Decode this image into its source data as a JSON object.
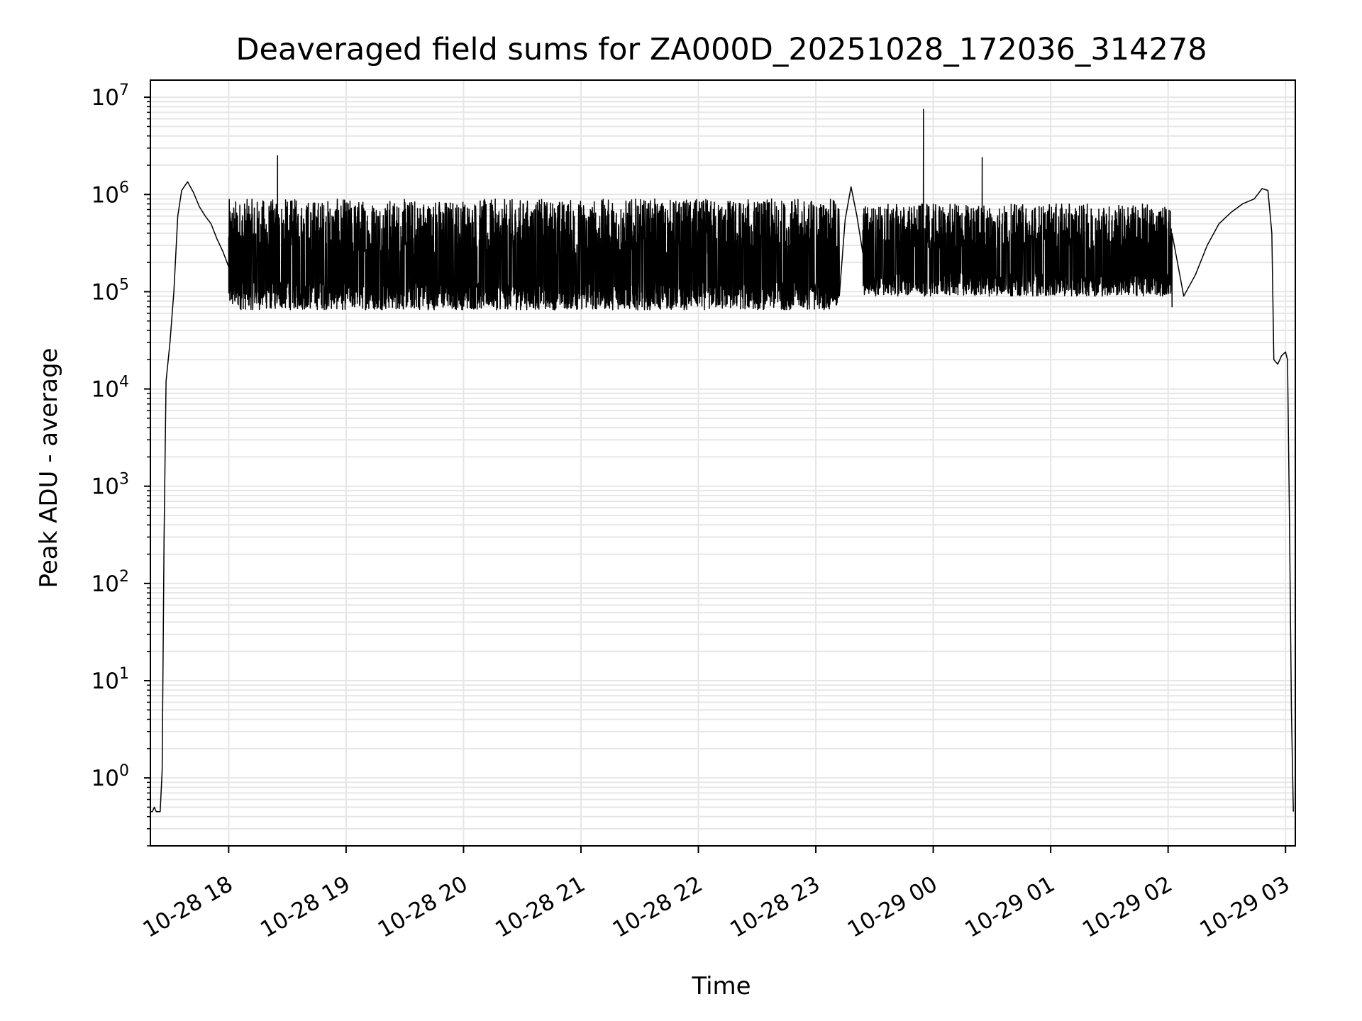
{
  "chart_data": {
    "type": "line",
    "title": "Deaveraged field sums for ZA000D_20251028_172036_314278",
    "xlabel": "Time",
    "ylabel": "Peak ADU - average",
    "yscale": "log",
    "ylim": [
      0.2,
      15000000
    ],
    "xlim": [
      "2025-10-28T17:20",
      "2025-10-29T03:05"
    ],
    "y_ticks": [
      {
        "base": "10",
        "exp": "0",
        "value": 1
      },
      {
        "base": "10",
        "exp": "1",
        "value": 10
      },
      {
        "base": "10",
        "exp": "2",
        "value": 100
      },
      {
        "base": "10",
        "exp": "3",
        "value": 1000
      },
      {
        "base": "10",
        "exp": "4",
        "value": 10000
      },
      {
        "base": "10",
        "exp": "5",
        "value": 100000
      },
      {
        "base": "10",
        "exp": "6",
        "value": 1000000
      },
      {
        "base": "10",
        "exp": "7",
        "value": 10000000
      }
    ],
    "x_ticks": [
      {
        "label": "10-28 18",
        "time": "2025-10-28T18:00"
      },
      {
        "label": "10-28 19",
        "time": "2025-10-28T19:00"
      },
      {
        "label": "10-28 20",
        "time": "2025-10-28T20:00"
      },
      {
        "label": "10-28 21",
        "time": "2025-10-28T21:00"
      },
      {
        "label": "10-28 22",
        "time": "2025-10-28T22:00"
      },
      {
        "label": "10-28 23",
        "time": "2025-10-28T23:00"
      },
      {
        "label": "10-29 00",
        "time": "2025-10-29T00:00"
      },
      {
        "label": "10-29 01",
        "time": "2025-10-29T01:00"
      },
      {
        "label": "10-29 02",
        "time": "2025-10-29T02:00"
      },
      {
        "label": "10-29 03",
        "time": "2025-10-29T03:00"
      }
    ],
    "grid": true,
    "line_color": "#000000",
    "grid_color": "#e6e6e6",
    "series": [
      {
        "points": [
          [
            "2025-10-28T17:20",
            0.45
          ],
          [
            "2025-10-28T17:21",
            0.45
          ],
          [
            "2025-10-28T17:22",
            0.5
          ],
          [
            "2025-10-28T17:23",
            0.45
          ],
          [
            "2025-10-28T17:24",
            0.45
          ],
          [
            "2025-10-28T17:25",
            0.45
          ],
          [
            "2025-10-28T17:26",
            1.2
          ],
          [
            "2025-10-28T17:27",
            300
          ],
          [
            "2025-10-28T17:28",
            12000
          ],
          [
            "2025-10-28T17:30",
            30000
          ],
          [
            "2025-10-28T17:32",
            100000
          ],
          [
            "2025-10-28T17:34",
            600000
          ],
          [
            "2025-10-28T17:36",
            1100000
          ],
          [
            "2025-10-28T17:39",
            1350000
          ],
          [
            "2025-10-28T17:42",
            1050000
          ],
          [
            "2025-10-28T17:45",
            750000
          ],
          [
            "2025-10-28T17:48",
            600000
          ],
          [
            "2025-10-28T17:51",
            500000
          ],
          [
            "2025-10-28T17:54",
            350000
          ],
          [
            "2025-10-28T17:57",
            260000
          ],
          [
            "2025-10-28T18:00",
            180000
          ],
          [
            "2025-10-28T18:03",
            120000
          ],
          [
            "2025-10-28T18:24",
            110000
          ],
          [
            "2025-10-28T18:25",
            2500000
          ],
          [
            "2025-10-28T18:26",
            100000
          ],
          [
            "2025-10-28T23:12",
            200000
          ],
          [
            "2025-10-28T23:15",
            550000
          ],
          [
            "2025-10-28T23:18",
            1200000
          ],
          [
            "2025-10-28T23:21",
            600000
          ],
          [
            "2025-10-28T23:24",
            250000
          ],
          [
            "2025-10-28T23:54",
            150000
          ],
          [
            "2025-10-28T23:55",
            7500000
          ],
          [
            "2025-10-28T23:56",
            120000
          ],
          [
            "2025-10-29T00:24",
            200000
          ],
          [
            "2025-10-29T00:25",
            2400000
          ],
          [
            "2025-10-29T00:26",
            180000
          ],
          [
            "2025-10-29T02:02",
            70000
          ],
          [
            "2025-10-29T02:08",
            90000
          ],
          [
            "2025-10-29T02:14",
            150000
          ],
          [
            "2025-10-29T02:20",
            300000
          ],
          [
            "2025-10-29T02:26",
            500000
          ],
          [
            "2025-10-29T02:32",
            650000
          ],
          [
            "2025-10-29T02:38",
            800000
          ],
          [
            "2025-10-29T02:44",
            900000
          ],
          [
            "2025-10-29T02:48",
            1150000
          ],
          [
            "2025-10-29T02:51",
            1100000
          ],
          [
            "2025-10-29T02:53",
            400000
          ],
          [
            "2025-10-29T02:54",
            20000
          ],
          [
            "2025-10-29T02:56",
            18000
          ],
          [
            "2025-10-29T02:58",
            22000
          ],
          [
            "2025-10-29T03:00",
            24000
          ],
          [
            "2025-10-29T03:01",
            20000
          ],
          [
            "2025-10-29T03:02",
            500
          ],
          [
            "2025-10-29T03:03",
            5
          ],
          [
            "2025-10-29T03:04",
            0.45
          ]
        ],
        "noise_segments": [
          {
            "start": "2025-10-28T18:00",
            "end": "2025-10-28T23:12",
            "low": 65000,
            "high": 900000
          },
          {
            "start": "2025-10-28T23:24",
            "end": "2025-10-29T02:02",
            "low": 90000,
            "high": 800000
          }
        ]
      }
    ]
  }
}
